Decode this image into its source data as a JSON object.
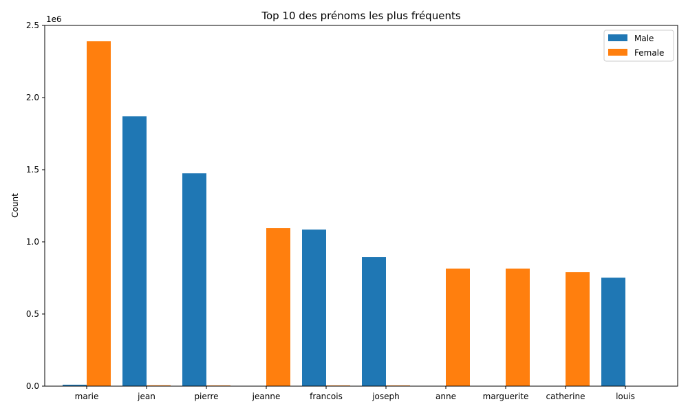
{
  "chart_data": {
    "type": "bar",
    "title": "Top 10 des prénoms les plus fréquents",
    "xlabel": "",
    "ylabel": "Count",
    "y_scale_label": "1e6",
    "ylim": [
      0,
      2500000
    ],
    "y_ticks": [
      {
        "value": 0,
        "label": "0.0"
      },
      {
        "value": 500000,
        "label": "0.5"
      },
      {
        "value": 1000000,
        "label": "1.0"
      },
      {
        "value": 1500000,
        "label": "1.5"
      },
      {
        "value": 2000000,
        "label": "2.0"
      },
      {
        "value": 2500000,
        "label": "2.5"
      }
    ],
    "categories": [
      "marie",
      "jean",
      "pierre",
      "jeanne",
      "francois",
      "joseph",
      "anne",
      "marguerite",
      "catherine",
      "louis"
    ],
    "series": [
      {
        "name": "Male",
        "color": "#1f77b4",
        "values": [
          10000,
          1870000,
          1475000,
          0,
          1085000,
          895000,
          0,
          0,
          0,
          752000
        ]
      },
      {
        "name": "Female",
        "color": "#ff7f0e",
        "values": [
          2390000,
          6000,
          5000,
          1095000,
          5000,
          5000,
          815000,
          815000,
          790000,
          0
        ]
      }
    ],
    "grid": false,
    "legend_position": "top-right"
  }
}
